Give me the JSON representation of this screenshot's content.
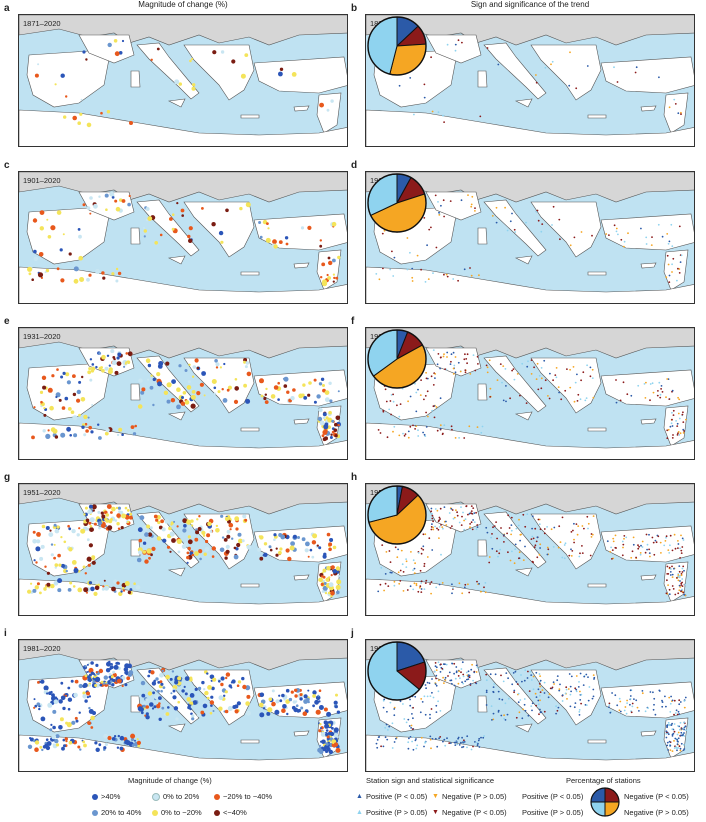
{
  "headers": {
    "left": "Magnitude of change (%)",
    "right": "Sign and significance of the trend"
  },
  "panels": [
    {
      "letter": "a",
      "period": "1871–2020"
    },
    {
      "letter": "b",
      "period": "1871–2020"
    },
    {
      "letter": "c",
      "period": "1901–2020"
    },
    {
      "letter": "d",
      "period": "1901–2020"
    },
    {
      "letter": "e",
      "period": "1931–2020"
    },
    {
      "letter": "f",
      "period": "1931–2020"
    },
    {
      "letter": "g",
      "period": "1951–2020"
    },
    {
      "letter": "h",
      "period": "1951–2020"
    },
    {
      "letter": "i",
      "period": "1981–2020"
    },
    {
      "letter": "j",
      "period": "1981–2020"
    }
  ],
  "pies": [
    {
      "panel": "b",
      "fractions": [
        0.13,
        0.11,
        0.3,
        0.46
      ]
    },
    {
      "panel": "d",
      "fractions": [
        0.08,
        0.12,
        0.48,
        0.32
      ]
    },
    {
      "panel": "f",
      "fractions": [
        0.06,
        0.11,
        0.48,
        0.35
      ]
    },
    {
      "panel": "h",
      "fractions": [
        0.03,
        0.1,
        0.58,
        0.29
      ]
    },
    {
      "panel": "j",
      "fractions": [
        0.2,
        0.16,
        0.0,
        0.64
      ]
    }
  ],
  "colors": {
    "sea": "#bfe2f2",
    "land": "#ffffff",
    "outer_land": "#d6d6d6",
    "pos_sig": "#2b5aa8",
    "pos_nonsig": "#8fd3ef",
    "neg_nonsig": "#f5a623",
    "neg_sig": "#8b1a1a",
    "gt40": "#2b55b8",
    "p20_40": "#6a96cf",
    "p0_20": "#c9e6f2",
    "n0_20": "#f4e45a",
    "n20_40": "#e8581c",
    "lt40": "#7a1c12"
  },
  "legend_magnitude": {
    "title": "Magnitude of change (%)",
    "items": [
      {
        "label": ">40%",
        "color": "#2b55b8"
      },
      {
        "label": "20% to 40%",
        "color": "#6a96cf"
      },
      {
        "label": "0% to 20%",
        "color": "#c9e6f2"
      },
      {
        "label": "0% to −20%",
        "color": "#f4e45a"
      },
      {
        "label": "−20% to −40%",
        "color": "#e8581c"
      },
      {
        "label": "<−40%",
        "color": "#7a1c12"
      }
    ]
  },
  "legend_sign": {
    "title": "Station sign and statistical significance",
    "pos_sig": "Positive (P < 0.05)",
    "pos_nonsig": "Positive (P > 0.05)",
    "neg_nonsig": "Negative (P > 0.05)",
    "neg_sig": "Negative (P < 0.05)"
  },
  "legend_pct": {
    "title": "Percentage of stations",
    "pos_sig": "Positive (P < 0.05)",
    "pos_nonsig": "Positive (P > 0.05)",
    "neg_sig": "Negative (P < 0.05)",
    "neg_nonsig": "Negative (P > 0.05)"
  }
}
